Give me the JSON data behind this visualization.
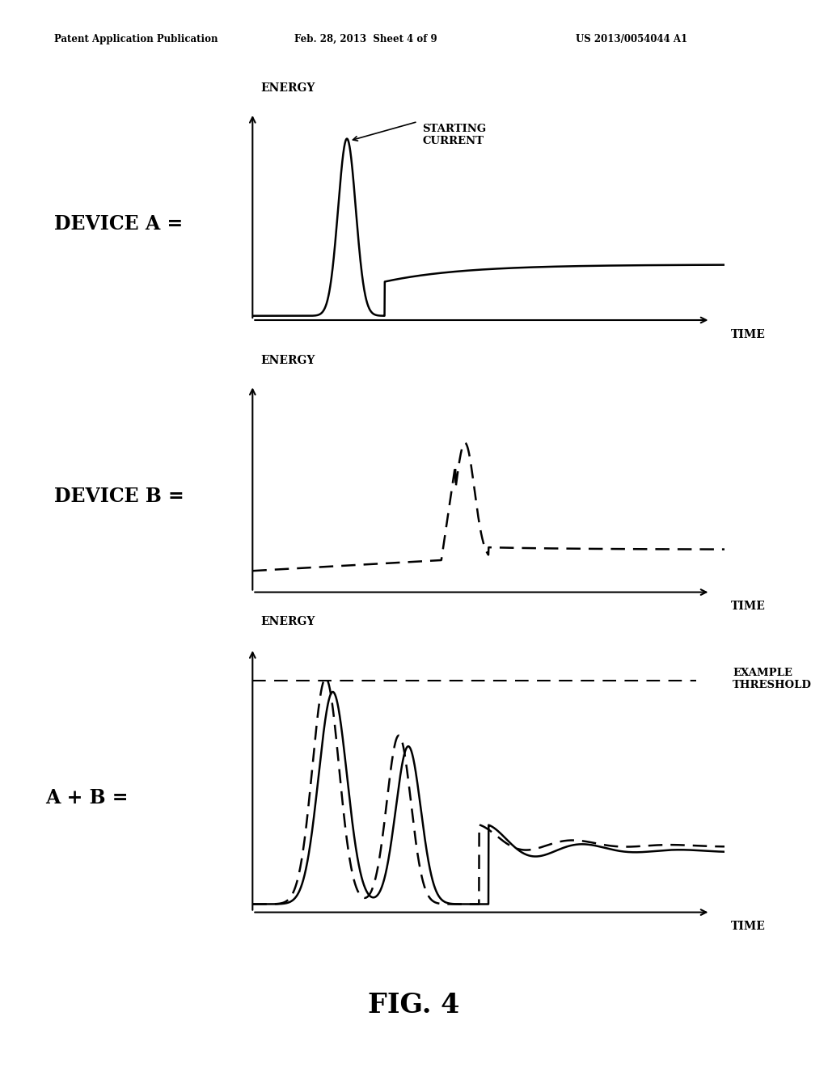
{
  "bg_color": "#ffffff",
  "text_color": "#000000",
  "header_left": "Patent Application Publication",
  "header_mid": "Feb. 28, 2013  Sheet 4 of 9",
  "header_right": "US 2013/0054044 A1",
  "fig_label": "FIG. 4",
  "panel1_label": "DEVICE A =",
  "panel2_label": "DEVICE B =",
  "panel3_label": "A + B =",
  "energy_label": "ENERGY",
  "time_label": "TIME",
  "starting_current_label": "STARTING\nCURRENT",
  "example_threshold_label": "EXAMPLE\nTHRESHOLD"
}
